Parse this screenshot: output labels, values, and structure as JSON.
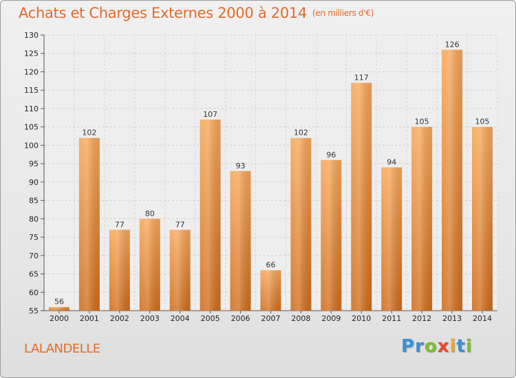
{
  "header": {
    "title": "Achats et Charges Externes 2000 à 2014",
    "unit": "(en milliers d'€)"
  },
  "commune": "LALANDELLE",
  "logo": {
    "letters": [
      {
        "char": "P",
        "color": "#3a8fd6"
      },
      {
        "char": "r",
        "color": "#3a8fd6"
      },
      {
        "char": "o",
        "color": "#7bbf2a"
      },
      {
        "char": "x",
        "color": "#e8462c"
      },
      {
        "char": "i",
        "color": "#f2a81d"
      },
      {
        "char": "t",
        "color": "#3a8fd6"
      },
      {
        "char": "i",
        "color": "#7bbf2a"
      }
    ]
  },
  "chart_data": {
    "type": "bar",
    "title": "Achats et Charges Externes 2000 à 2014",
    "subtitle": "(en milliers d'€)",
    "xlabel": "",
    "ylabel": "",
    "categories": [
      "2000",
      "2001",
      "2002",
      "2003",
      "2004",
      "2005",
      "2006",
      "2007",
      "2008",
      "2009",
      "2010",
      "2011",
      "2012",
      "2013",
      "2014"
    ],
    "values": [
      56,
      102,
      77,
      80,
      77,
      107,
      93,
      66,
      102,
      96,
      117,
      94,
      105,
      126,
      105
    ],
    "ylim": [
      55,
      130
    ],
    "yticks": [
      55,
      60,
      65,
      70,
      75,
      80,
      85,
      90,
      95,
      100,
      105,
      110,
      115,
      120,
      125,
      130
    ],
    "grid": true,
    "bar_color_top": "#f7a75a",
    "bar_color_bottom": "#cf6d1c"
  }
}
